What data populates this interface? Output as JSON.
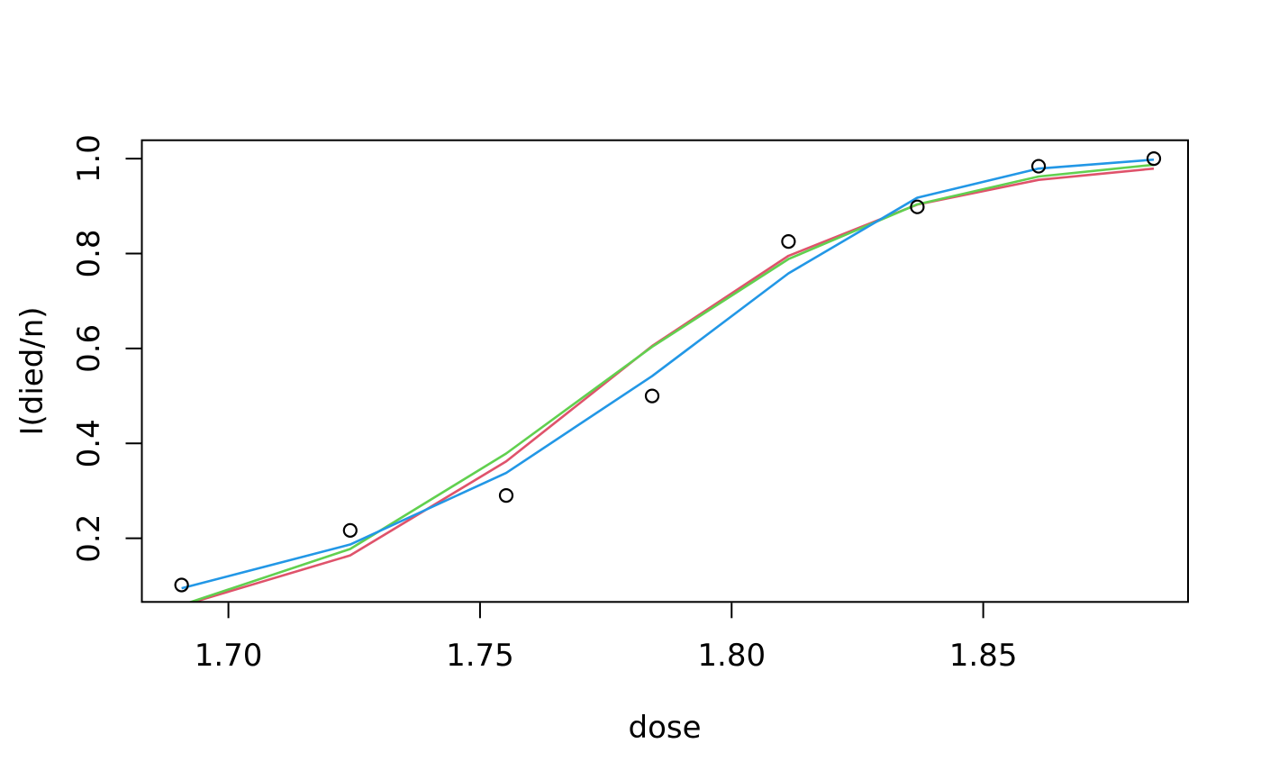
{
  "chart_data": {
    "type": "scatter",
    "title": "",
    "xlabel": "dose",
    "ylabel": "I(died/n)",
    "grid": false,
    "legend": "none",
    "xlim": [
      1.6828,
      1.8907
    ],
    "ylim": [
      0.066,
      1.0387
    ],
    "x_ticks": [
      {
        "value": 1.7,
        "label": "1.70"
      },
      {
        "value": 1.75,
        "label": "1.75"
      },
      {
        "value": 1.8,
        "label": "1.80"
      },
      {
        "value": 1.85,
        "label": "1.85"
      }
    ],
    "y_ticks": [
      {
        "value": 0.2,
        "label": "0.2"
      },
      {
        "value": 0.4,
        "label": "0.4"
      },
      {
        "value": 0.6,
        "label": "0.6"
      },
      {
        "value": 0.8,
        "label": "0.8"
      },
      {
        "value": 1.0,
        "label": "1.0"
      }
    ],
    "x": [
      1.6907,
      1.7242,
      1.7552,
      1.7842,
      1.8113,
      1.8369,
      1.861,
      1.8839
    ],
    "points": {
      "name": "observed-proportions",
      "marker": "open-circle",
      "color": "#000000",
      "values": [
        0.1017,
        0.2167,
        0.2903,
        0.5,
        0.8254,
        0.8983,
        0.9839,
        1.0
      ]
    },
    "series": [
      {
        "name": "red-fit-line",
        "color": "#DF536B",
        "values": [
          0.0582,
          0.164,
          0.3621,
          0.6053,
          0.7952,
          0.9032,
          0.9552,
          0.979
        ]
      },
      {
        "name": "green-fit-line",
        "color": "#61D04F",
        "values": [
          0.0594,
          0.1776,
          0.3787,
          0.6035,
          0.7884,
          0.9037,
          0.9622,
          0.987
        ]
      },
      {
        "name": "blue-fit-line",
        "color": "#2297E6",
        "values": [
          0.0947,
          0.187,
          0.3378,
          0.5418,
          0.7582,
          0.9177,
          0.979,
          0.9978
        ]
      }
    ]
  }
}
